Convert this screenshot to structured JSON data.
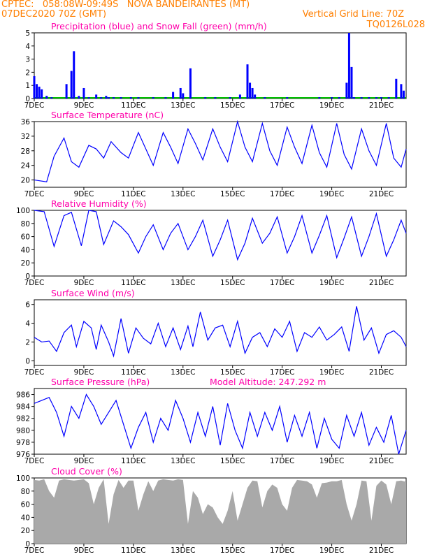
{
  "header": {
    "station_line": "CPTEC:   058:08W-09:49S   NOVA BANDEIRANTES (MT)",
    "date_line": "07DEC2020 70Z (GMT)",
    "grid_line_label": "Vertical Grid Line: 70Z",
    "model_code": "TQ0126L028"
  },
  "colors": {
    "header_text": "#ff7f00",
    "title_text": "#ff00aa",
    "series_line": "#0000ff",
    "snow_fall": "#00c000",
    "cloud_fill": "#a9a9a9",
    "wind_arrow": "#000000"
  },
  "x_tick_labels": [
    "7DEC",
    "9DEC",
    "11DEC",
    "13DEC",
    "15DEC",
    "17DEC",
    "19DEC",
    "21DEC"
  ],
  "chart_data": [
    {
      "type": "bar",
      "title": "Precipitation (blue) and Snow Fall (green) (mm/h)",
      "ylim": [
        0,
        5
      ],
      "yticks": [
        "0",
        "1",
        "2",
        "3",
        "4",
        "5"
      ],
      "x": [
        7.0,
        7.1,
        7.2,
        7.3,
        7.5,
        7.7,
        8.3,
        8.5,
        8.6,
        8.8,
        9.0,
        9.2,
        9.5,
        9.7,
        9.9,
        10.0,
        10.2,
        10.5,
        10.9,
        11.2,
        11.8,
        12.3,
        12.6,
        12.9,
        13.0,
        13.3,
        13.9,
        14.3,
        14.9,
        15.3,
        15.6,
        15.7,
        15.8,
        15.9,
        16.3,
        17.2,
        18.5,
        19.0,
        19.3,
        19.6,
        19.7,
        19.8,
        19.9,
        20.2,
        20.5,
        20.8,
        21.0,
        21.3,
        21.6,
        21.8,
        21.9
      ],
      "series": [
        {
          "name": "Precipitation",
          "values": [
            1.7,
            1.1,
            0.9,
            0.7,
            0.2,
            0.1,
            1.1,
            2.1,
            3.6,
            0.2,
            0.8,
            0.1,
            0.3,
            0.1,
            0.2,
            0.1,
            0.1,
            0.1,
            0.1,
            0.1,
            0.1,
            0.1,
            0.5,
            0.8,
            0.4,
            2.3,
            0.1,
            0.1,
            0.1,
            0.3,
            2.6,
            1.2,
            0.8,
            0.3,
            0.1,
            0.1,
            0.1,
            0.1,
            0.1,
            1.2,
            5.0,
            2.4,
            0.1,
            0.1,
            0.1,
            0.1,
            0.1,
            0.1,
            1.5,
            1.1,
            0.6
          ]
        }
      ]
    },
    {
      "type": "line",
      "title": "Surface Temperature (nC)",
      "ylim": [
        18,
        36
      ],
      "yticks": [
        "20",
        "24",
        "28",
        "32",
        "36"
      ],
      "x": [
        7.0,
        7.5,
        7.8,
        8.2,
        8.5,
        8.8,
        9.2,
        9.5,
        9.8,
        10.1,
        10.5,
        10.8,
        11.2,
        11.5,
        11.8,
        12.2,
        12.5,
        12.8,
        13.2,
        13.5,
        13.8,
        14.2,
        14.5,
        14.8,
        15.2,
        15.5,
        15.8,
        16.2,
        16.5,
        16.8,
        17.2,
        17.5,
        17.8,
        18.2,
        18.5,
        18.8,
        19.2,
        19.5,
        19.8,
        20.2,
        20.5,
        20.8,
        21.2,
        21.5,
        21.8,
        22.0
      ],
      "series": [
        {
          "name": "Surface Temperature",
          "values": [
            20,
            19.5,
            26.5,
            31.5,
            25,
            23.5,
            29.5,
            28.5,
            26,
            30.5,
            27.5,
            26,
            33,
            28.5,
            24,
            33,
            29,
            24.5,
            34,
            30,
            25.5,
            34,
            29,
            25,
            36,
            29,
            25,
            35.5,
            28,
            24,
            34.5,
            29,
            24.5,
            35,
            27.5,
            23.5,
            35.5,
            27,
            23,
            34,
            28,
            24,
            35.5,
            26,
            23.5,
            28.5
          ]
        }
      ]
    },
    {
      "type": "line",
      "title": "Relative Humidity (%)",
      "ylim": [
        0,
        100
      ],
      "yticks": [
        "0",
        "20",
        "40",
        "60",
        "80",
        "100"
      ],
      "x": [
        7.0,
        7.4,
        7.8,
        8.2,
        8.5,
        8.9,
        9.2,
        9.5,
        9.8,
        10.2,
        10.5,
        10.8,
        11.2,
        11.5,
        11.8,
        12.2,
        12.5,
        12.8,
        13.2,
        13.5,
        13.8,
        14.2,
        14.5,
        14.8,
        15.2,
        15.5,
        15.8,
        16.2,
        16.5,
        16.8,
        17.2,
        17.5,
        17.8,
        18.2,
        18.5,
        18.8,
        19.2,
        19.5,
        19.8,
        20.2,
        20.5,
        20.8,
        21.2,
        21.5,
        21.8,
        22.0
      ],
      "series": [
        {
          "name": "Relative Humidity",
          "values": [
            100,
            98,
            45,
            92,
            97,
            46,
            100,
            98,
            48,
            84,
            75,
            63,
            35,
            60,
            78,
            40,
            65,
            80,
            40,
            60,
            85,
            30,
            55,
            85,
            25,
            50,
            88,
            50,
            65,
            90,
            35,
            60,
            92,
            35,
            62,
            92,
            28,
            58,
            90,
            30,
            60,
            95,
            30,
            55,
            85,
            65
          ]
        }
      ]
    },
    {
      "type": "line",
      "title": "Surface Wind (m/s)",
      "ylim": [
        -0.5,
        6.5
      ],
      "yticks": [
        "0",
        "2",
        "4",
        "6"
      ],
      "x": [
        7.0,
        7.3,
        7.6,
        7.9,
        8.2,
        8.5,
        8.7,
        9.0,
        9.3,
        9.5,
        9.7,
        10.0,
        10.2,
        10.5,
        10.8,
        11.1,
        11.4,
        11.7,
        12.0,
        12.3,
        12.6,
        12.9,
        13.2,
        13.4,
        13.7,
        14.0,
        14.3,
        14.6,
        14.9,
        15.2,
        15.5,
        15.8,
        16.1,
        16.4,
        16.7,
        17.0,
        17.3,
        17.6,
        17.9,
        18.2,
        18.5,
        18.8,
        19.1,
        19.4,
        19.7,
        20.0,
        20.3,
        20.6,
        20.9,
        21.2,
        21.5,
        21.8,
        22.0
      ],
      "series": [
        {
          "name": "Surface Wind",
          "values": [
            2.5,
            2.0,
            2.1,
            1.0,
            3.0,
            3.8,
            1.5,
            4.2,
            3.5,
            1.2,
            3.8,
            2.0,
            0.5,
            4.5,
            0.8,
            3.5,
            2.4,
            1.8,
            4.0,
            1.5,
            3.5,
            1.2,
            3.7,
            1.5,
            5.2,
            2.2,
            3.5,
            3.8,
            1.5,
            4.2,
            0.8,
            2.5,
            3.0,
            1.5,
            3.4,
            2.5,
            4.2,
            1.0,
            3.0,
            2.5,
            3.6,
            2.2,
            2.8,
            3.6,
            1.0,
            5.8,
            2.2,
            3.5,
            0.8,
            2.8,
            3.2,
            2.5,
            1.5
          ]
        }
      ]
    },
    {
      "type": "line",
      "title": "Surface Pressure (hPa)",
      "annotation": "Model Altitude: 247.292  m",
      "ylim": [
        976,
        987
      ],
      "yticks": [
        "976",
        "978",
        "980",
        "982",
        "984",
        "986"
      ],
      "x": [
        7.0,
        7.3,
        7.6,
        7.9,
        8.2,
        8.5,
        8.8,
        9.1,
        9.4,
        9.7,
        10.0,
        10.3,
        10.6,
        10.9,
        11.2,
        11.5,
        11.8,
        12.1,
        12.4,
        12.7,
        13.0,
        13.3,
        13.6,
        13.9,
        14.2,
        14.5,
        14.8,
        15.1,
        15.4,
        15.7,
        16.0,
        16.3,
        16.6,
        16.9,
        17.2,
        17.5,
        17.8,
        18.1,
        18.4,
        18.7,
        19.0,
        19.3,
        19.6,
        19.9,
        20.2,
        20.5,
        20.8,
        21.1,
        21.4,
        21.7,
        22.0
      ],
      "series": [
        {
          "name": "Surface Pressure",
          "values": [
            984.5,
            985,
            985.5,
            983,
            979,
            984,
            982,
            986,
            984,
            981,
            983,
            985,
            981,
            977,
            980.5,
            983,
            978,
            982,
            980,
            985,
            982,
            978,
            983,
            979,
            984,
            977.5,
            984.5,
            980,
            977,
            983,
            979,
            983,
            980,
            984,
            978,
            982.5,
            979,
            983,
            977,
            982,
            978.5,
            977,
            982.5,
            979,
            983,
            977.5,
            980.5,
            978,
            982.5,
            976,
            980
          ]
        }
      ]
    },
    {
      "type": "area",
      "title": "Cloud Cover (%)",
      "ylim": [
        0,
        100
      ],
      "yticks": [
        "0",
        "20",
        "40",
        "60",
        "80",
        "100"
      ],
      "x": [
        7.0,
        7.2,
        7.4,
        7.6,
        7.8,
        8.0,
        8.2,
        8.4,
        8.6,
        8.8,
        9.0,
        9.2,
        9.4,
        9.6,
        9.8,
        10.0,
        10.2,
        10.4,
        10.6,
        10.8,
        11.0,
        11.2,
        11.4,
        11.6,
        11.8,
        12.0,
        12.2,
        12.4,
        12.6,
        12.8,
        13.0,
        13.2,
        13.4,
        13.6,
        13.8,
        14.0,
        14.2,
        14.4,
        14.6,
        14.8,
        15.0,
        15.2,
        15.4,
        15.6,
        15.8,
        16.0,
        16.2,
        16.4,
        16.6,
        16.8,
        17.0,
        17.2,
        17.4,
        17.6,
        17.8,
        18.0,
        18.2,
        18.4,
        18.6,
        18.8,
        19.0,
        19.2,
        19.4,
        19.6,
        19.8,
        20.0,
        20.2,
        20.4,
        20.6,
        20.8,
        21.0,
        21.2,
        21.4,
        21.6,
        21.8,
        22.0
      ],
      "series": [
        {
          "name": "Cloud Cover",
          "values": [
            97,
            96,
            98,
            80,
            70,
            96,
            98,
            97,
            96,
            97,
            98,
            92,
            60,
            85,
            98,
            30,
            75,
            97,
            85,
            96,
            96,
            50,
            75,
            95,
            80,
            96,
            98,
            97,
            96,
            98,
            97,
            30,
            80,
            70,
            45,
            60,
            55,
            40,
            30,
            50,
            80,
            35,
            60,
            85,
            96,
            95,
            55,
            80,
            90,
            85,
            60,
            50,
            85,
            97,
            96,
            95,
            90,
            70,
            92,
            93,
            95,
            95,
            97,
            60,
            35,
            60,
            96,
            95,
            35,
            88,
            96,
            90,
            60,
            95,
            96,
            94
          ]
        }
      ]
    }
  ]
}
